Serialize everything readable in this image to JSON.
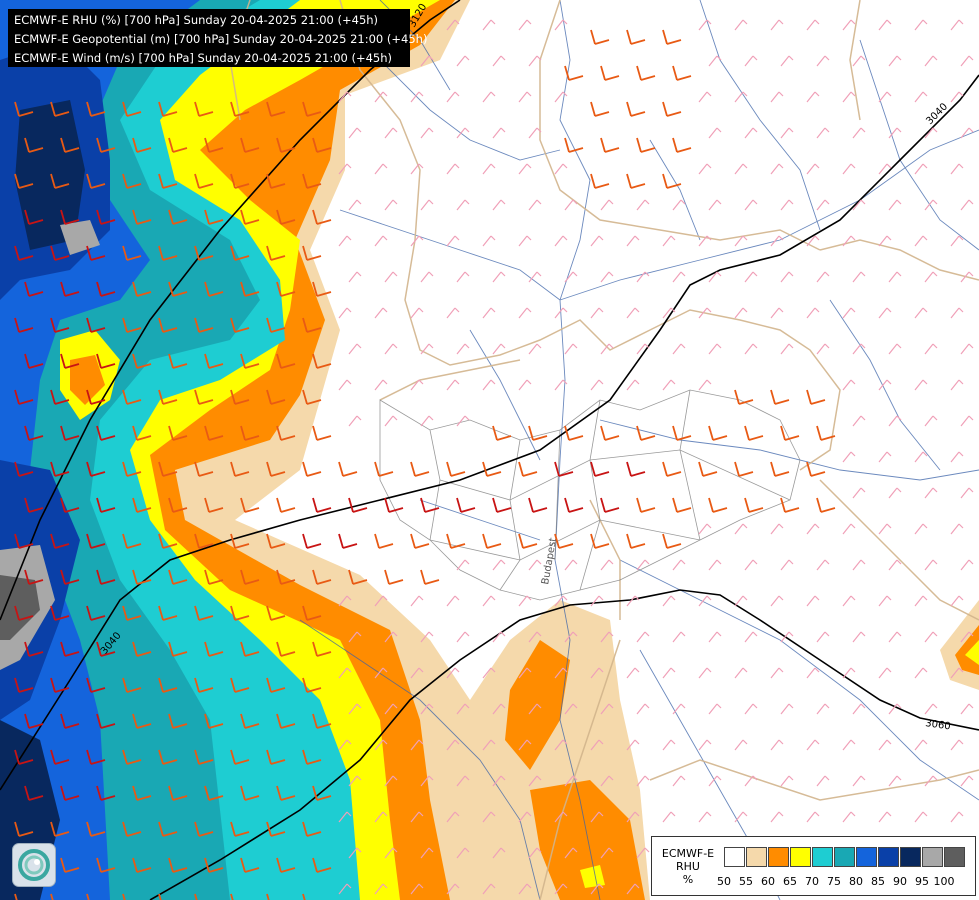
{
  "header": {
    "line1": "ECMWF-E RHU (%) [700 hPa] Sunday 20-04-2025 21:00 (+45h)",
    "line2": "ECMWF-E Geopotential (m) [700 hPa] Sunday 20-04-2025 21:00 (+45h)",
    "line3": "ECMWF-E Wind (m/s) [700 hPa] Sunday 20-04-2025 21:00 (+45h)"
  },
  "legend": {
    "model": "ECMWF-E",
    "variable": "RHU",
    "unit": "%",
    "ticks": [
      "50",
      "55",
      "60",
      "65",
      "70",
      "75",
      "80",
      "85",
      "90",
      "95",
      "100"
    ],
    "colors": [
      "#ffffff",
      "#f5d9ab",
      "#ff8c00",
      "#ffff00",
      "#1ecdd2",
      "#19a8b4",
      "#1464dc",
      "#0a40a8",
      "#08285e",
      "#a8a8a8",
      "#5e5e5e"
    ]
  },
  "contours": {
    "labels": [
      "3120",
      "3040",
      "3040",
      "3060"
    ]
  },
  "map_labels": {
    "city": "Budapest"
  },
  "logo_icon": "ogimet-swirl-icon"
}
